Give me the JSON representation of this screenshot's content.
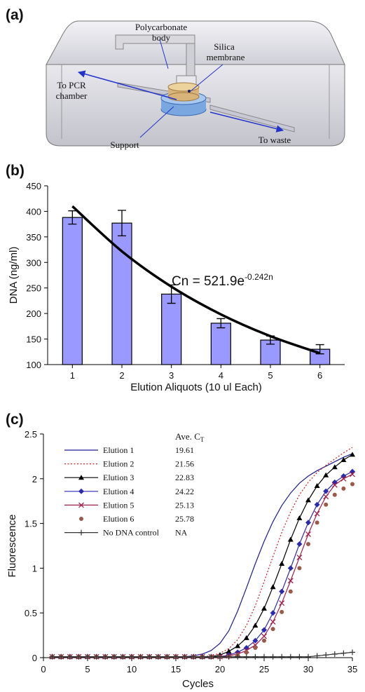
{
  "panels": [
    "(a)",
    "(b)",
    "(c)"
  ],
  "diagram": {
    "labels": [
      [
        "Polycarbonate",
        "body"
      ],
      [
        "Silica",
        "membrane"
      ],
      [
        "To PCR",
        "chamber"
      ],
      [
        "Support"
      ],
      [
        "To waste"
      ]
    ]
  },
  "chart_data": [
    {
      "type": "bar",
      "xlabel": "Elution Aliquots (10 ul Each)",
      "ylabel": "DNA (ng/ml)",
      "categories": [
        "1",
        "2",
        "3",
        "4",
        "5",
        "6"
      ],
      "values": [
        388,
        377,
        238,
        181,
        148,
        130
      ],
      "errors": [
        13,
        25,
        18,
        9,
        8,
        9
      ],
      "color": "#9999ff",
      "fit": {
        "values": [
          409.9,
          321.7,
          252.5,
          198.2,
          155.6,
          122.2
        ],
        "color": "#000000"
      },
      "annotation": {
        "text": "Cn = 521.9e",
        "superscript": "-0.242n"
      },
      "ylim": [
        100,
        450
      ],
      "yticks": [
        100,
        150,
        200,
        250,
        300,
        350,
        400,
        450
      ]
    },
    {
      "type": "line",
      "xlabel": "Cycles",
      "ylabel": "Fluorescence",
      "legend_header": {
        "text": "Ave. C",
        "subscript": "T"
      },
      "x": [
        1,
        2,
        3,
        4,
        5,
        6,
        7,
        8,
        9,
        10,
        11,
        12,
        13,
        14,
        15,
        16,
        17,
        18,
        19,
        20,
        21,
        22,
        23,
        24,
        25,
        26,
        27,
        28,
        29,
        30,
        31,
        32,
        33,
        34,
        35
      ],
      "xlim": [
        0,
        35
      ],
      "xticks": [
        0,
        5,
        10,
        15,
        20,
        25,
        30,
        35
      ],
      "ylim": [
        0,
        2.5
      ],
      "yticks": [
        0,
        0.5,
        1,
        1.5,
        2,
        2.5
      ],
      "series": [
        {
          "name": "Elution 1",
          "ct": 19.61,
          "color": "#1c1c96",
          "line": "solid",
          "marker": "none",
          "values": [
            0.01,
            0.01,
            0.01,
            0.01,
            0.01,
            0.01,
            0.01,
            0.01,
            0.01,
            0.01,
            0.01,
            0.01,
            0.01,
            0.01,
            0.01,
            0.01,
            0.02,
            0.04,
            0.08,
            0.16,
            0.3,
            0.52,
            0.78,
            1.05,
            1.3,
            1.52,
            1.7,
            1.84,
            1.95,
            2.03,
            2.09,
            2.14,
            2.19,
            2.24,
            2.28
          ]
        },
        {
          "name": "Elution 2",
          "ct": 21.56,
          "color": "#d42020",
          "line": "dotted",
          "marker": "none",
          "values": [
            0.01,
            0.01,
            0.01,
            0.01,
            0.01,
            0.01,
            0.01,
            0.01,
            0.01,
            0.01,
            0.01,
            0.01,
            0.01,
            0.01,
            0.01,
            0.01,
            0.01,
            0.01,
            0.02,
            0.05,
            0.1,
            0.2,
            0.36,
            0.58,
            0.85,
            1.13,
            1.4,
            1.63,
            1.82,
            1.96,
            2.07,
            2.15,
            2.22,
            2.29,
            2.35
          ]
        },
        {
          "name": "Elution 3",
          "ct": 22.83,
          "color": "#000000",
          "line": "solid",
          "marker": "triangle",
          "values": [
            0.01,
            0.01,
            0.01,
            0.01,
            0.01,
            0.01,
            0.01,
            0.01,
            0.01,
            0.01,
            0.01,
            0.01,
            0.01,
            0.01,
            0.01,
            0.01,
            0.01,
            0.01,
            0.01,
            0.03,
            0.07,
            0.13,
            0.22,
            0.36,
            0.55,
            0.79,
            1.05,
            1.32,
            1.56,
            1.76,
            1.92,
            2.04,
            2.13,
            2.21,
            2.27
          ]
        },
        {
          "name": "Elution 4",
          "ct": 24.22,
          "color": "#2a2ab0",
          "line": "solid",
          "marker": "diamond",
          "values": [
            0.01,
            0.01,
            0.01,
            0.01,
            0.01,
            0.01,
            0.01,
            0.01,
            0.01,
            0.01,
            0.01,
            0.01,
            0.01,
            0.01,
            0.01,
            0.01,
            0.01,
            0.01,
            0.01,
            0.01,
            0.03,
            0.06,
            0.11,
            0.19,
            0.31,
            0.5,
            0.74,
            1.0,
            1.27,
            1.51,
            1.71,
            1.86,
            1.96,
            2.03,
            2.08
          ]
        },
        {
          "name": "Elution 5",
          "ct": 25.13,
          "color": "#a0204a",
          "line": "solid",
          "marker": "x",
          "values": [
            0.01,
            0.01,
            0.01,
            0.01,
            0.01,
            0.01,
            0.01,
            0.01,
            0.01,
            0.01,
            0.01,
            0.01,
            0.01,
            0.01,
            0.01,
            0.01,
            0.01,
            0.01,
            0.01,
            0.01,
            0.02,
            0.04,
            0.08,
            0.14,
            0.24,
            0.4,
            0.61,
            0.86,
            1.12,
            1.38,
            1.61,
            1.8,
            1.93,
            2.0,
            2.05
          ]
        },
        {
          "name": "Elution 6",
          "ct": 25.78,
          "color": "#9a5a4a",
          "line": "none",
          "marker": "circle",
          "values": [
            0.01,
            0.01,
            0.01,
            0.01,
            0.01,
            0.01,
            0.01,
            0.01,
            0.01,
            0.01,
            0.01,
            0.01,
            0.01,
            0.01,
            0.01,
            0.01,
            0.01,
            0.01,
            0.01,
            0.01,
            0.01,
            0.03,
            0.06,
            0.11,
            0.19,
            0.32,
            0.51,
            0.74,
            1.0,
            1.27,
            1.51,
            1.71,
            1.82,
            1.89,
            1.94
          ]
        },
        {
          "name": "No DNA control",
          "ct": "NA",
          "color": "#333333",
          "line": "solid",
          "marker": "plus",
          "values": [
            0.01,
            0.01,
            0.01,
            0.01,
            0.01,
            0.01,
            0.01,
            0.01,
            0.01,
            0.01,
            0.01,
            0.01,
            0.01,
            0.01,
            0.01,
            0.01,
            0.01,
            0.01,
            0.01,
            0.01,
            0.01,
            0.01,
            0.01,
            0.01,
            0.01,
            0.01,
            0.01,
            0.01,
            0.01,
            0.01,
            0.02,
            0.03,
            0.04,
            0.05,
            0.06
          ]
        }
      ]
    }
  ]
}
